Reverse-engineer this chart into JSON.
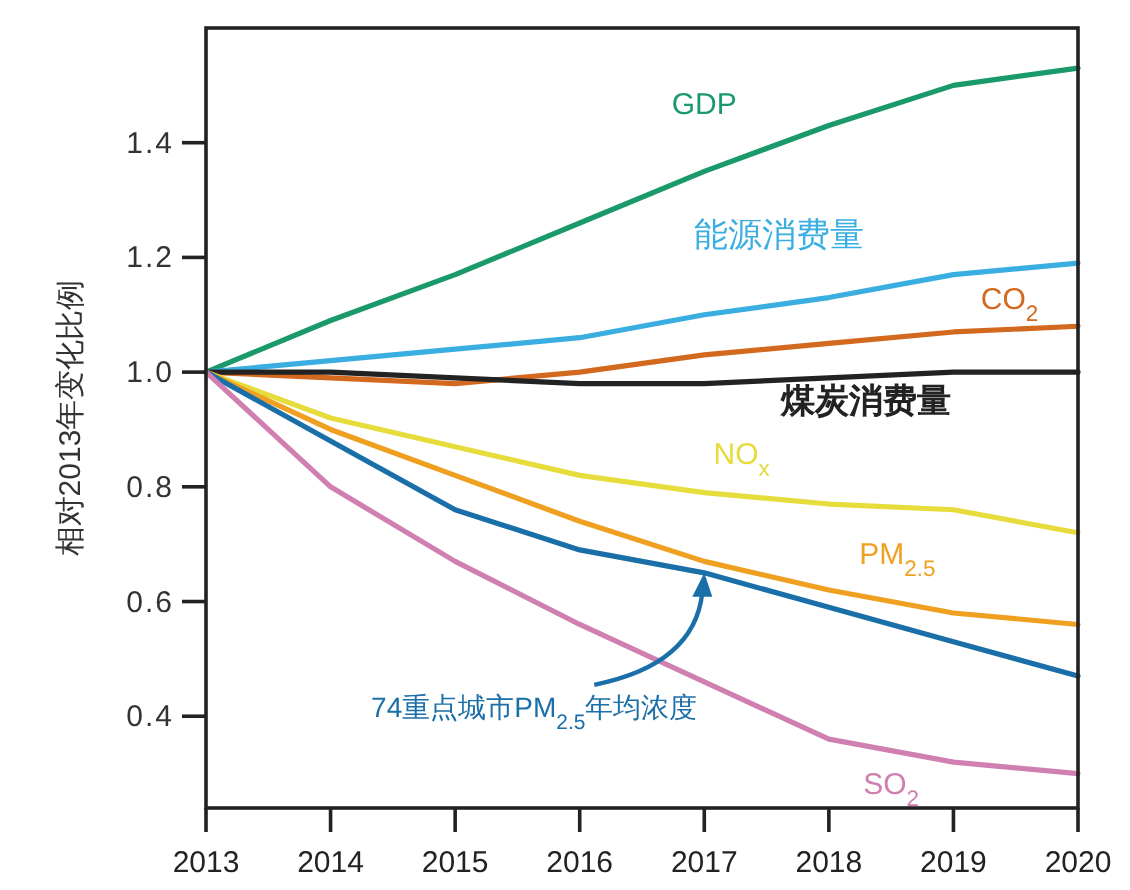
{
  "chart_data": {
    "type": "line",
    "ylabel": "相对2013年变化比例",
    "x": [
      2013,
      2014,
      2015,
      2016,
      2017,
      2018,
      2019,
      2020
    ],
    "xlim": [
      2013,
      2020
    ],
    "xticks": [
      2013,
      2014,
      2015,
      2016,
      2017,
      2018,
      2019,
      2020
    ],
    "ylim": [
      0.24,
      1.6
    ],
    "yticks": [
      {
        "value": 0.4,
        "label": "0.4"
      },
      {
        "value": 0.6,
        "label": "0.6"
      },
      {
        "value": 0.8,
        "label": "0.8"
      },
      {
        "value": 1.0,
        "label": "1.0"
      },
      {
        "value": 1.2,
        "label": "1.2"
      },
      {
        "value": 1.4,
        "label": "1.4"
      }
    ],
    "grid": false,
    "legend": false,
    "marker": "none",
    "line_style": "solid",
    "series": [
      {
        "name": "GDP",
        "color": "#1a9a6a",
        "values": [
          1.0,
          1.09,
          1.17,
          1.26,
          1.35,
          1.43,
          1.5,
          1.53
        ]
      },
      {
        "name": "能源消费量",
        "color": "#3aaee0",
        "values": [
          1.0,
          1.02,
          1.04,
          1.06,
          1.1,
          1.13,
          1.17,
          1.19
        ]
      },
      {
        "name": "CO$_{2}$",
        "color": "#d2691e",
        "values": [
          1.0,
          0.99,
          0.98,
          1.0,
          1.03,
          1.05,
          1.07,
          1.08
        ]
      },
      {
        "name": "煤炭消费量",
        "color": "#222222",
        "values": [
          1.0,
          1.0,
          0.99,
          0.98,
          0.98,
          0.99,
          1.0,
          1.0
        ]
      },
      {
        "name": "NO$_{x}$",
        "color": "#e6dc3c",
        "values": [
          1.0,
          0.92,
          0.87,
          0.82,
          0.79,
          0.77,
          0.76,
          0.72
        ]
      },
      {
        "name": "PM$_{2.5}$",
        "color": "#f0a020",
        "values": [
          1.0,
          0.9,
          0.82,
          0.74,
          0.67,
          0.62,
          0.58,
          0.56
        ]
      },
      {
        "name": null,
        "color": "#1b6fa8",
        "values": [
          1.0,
          0.88,
          0.76,
          0.69,
          0.65,
          0.59,
          0.53,
          0.47
        ]
      },
      {
        "name": "SO$_{2}$",
        "color": "#d080b0",
        "values": [
          1.0,
          0.8,
          0.67,
          0.56,
          0.46,
          0.36,
          0.32,
          0.3
        ]
      }
    ],
    "annotations": [
      "74重点城市PM$_{2.5}$年均浓度"
    ]
  }
}
